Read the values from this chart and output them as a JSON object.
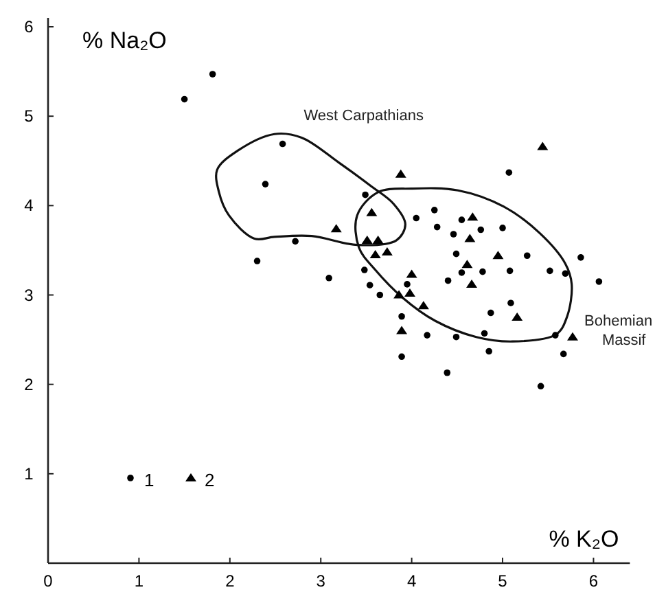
{
  "chart_data": {
    "type": "scatter",
    "xlabel": "% K₂O",
    "ylabel": "% Na₂O",
    "xlim": [
      0,
      6.4
    ],
    "ylim": [
      0,
      6.1
    ],
    "xticks": [
      0,
      1,
      2,
      3,
      4,
      5,
      6
    ],
    "yticks": [
      1,
      2,
      3,
      4,
      5,
      6
    ],
    "legend": "bottom left",
    "grid": false,
    "annotations": [
      "West Carpathians",
      "Bohemian Massif"
    ],
    "series": [
      {
        "name": "1",
        "type": "scatter",
        "marker": "circle",
        "color": "#000000",
        "x": [
          1.81,
          1.5,
          2.58,
          2.39,
          2.72,
          2.3,
          3.09,
          5.07,
          3.49,
          4.25,
          4.05,
          4.28,
          4.55,
          4.76,
          5.0,
          4.46,
          4.49,
          5.27,
          5.86,
          3.48,
          4.55,
          4.78,
          5.08,
          5.52,
          5.69,
          6.06,
          3.54,
          3.95,
          4.4,
          3.65,
          5.09,
          4.87,
          3.89,
          4.17,
          4.49,
          4.8,
          5.58,
          4.85,
          5.67,
          3.89,
          4.39,
          5.42
        ],
        "values": [
          5.47,
          5.19,
          4.69,
          4.24,
          3.6,
          3.38,
          3.19,
          4.37,
          4.12,
          3.95,
          3.86,
          3.76,
          3.84,
          3.73,
          3.75,
          3.68,
          3.46,
          3.44,
          3.42,
          3.28,
          3.25,
          3.26,
          3.27,
          3.27,
          3.24,
          3.15,
          3.11,
          3.12,
          3.16,
          3.0,
          2.91,
          2.8,
          2.76,
          2.55,
          2.53,
          2.57,
          2.55,
          2.37,
          2.34,
          2.31,
          2.13,
          1.98
        ]
      },
      {
        "name": "2",
        "type": "scatter",
        "marker": "triangle",
        "color": "#000000",
        "x": [
          5.44,
          3.88,
          3.56,
          4.67,
          3.17,
          3.51,
          3.63,
          4.64,
          3.6,
          3.73,
          4.95,
          4.61,
          4.0,
          4.66,
          3.98,
          3.86,
          4.13,
          5.16,
          3.89,
          5.77
        ],
        "values": [
          4.66,
          4.35,
          3.92,
          3.87,
          3.74,
          3.61,
          3.61,
          3.63,
          3.45,
          3.48,
          3.44,
          3.34,
          3.23,
          3.12,
          3.02,
          3.0,
          2.88,
          2.75,
          2.6,
          2.53
        ]
      }
    ]
  }
}
